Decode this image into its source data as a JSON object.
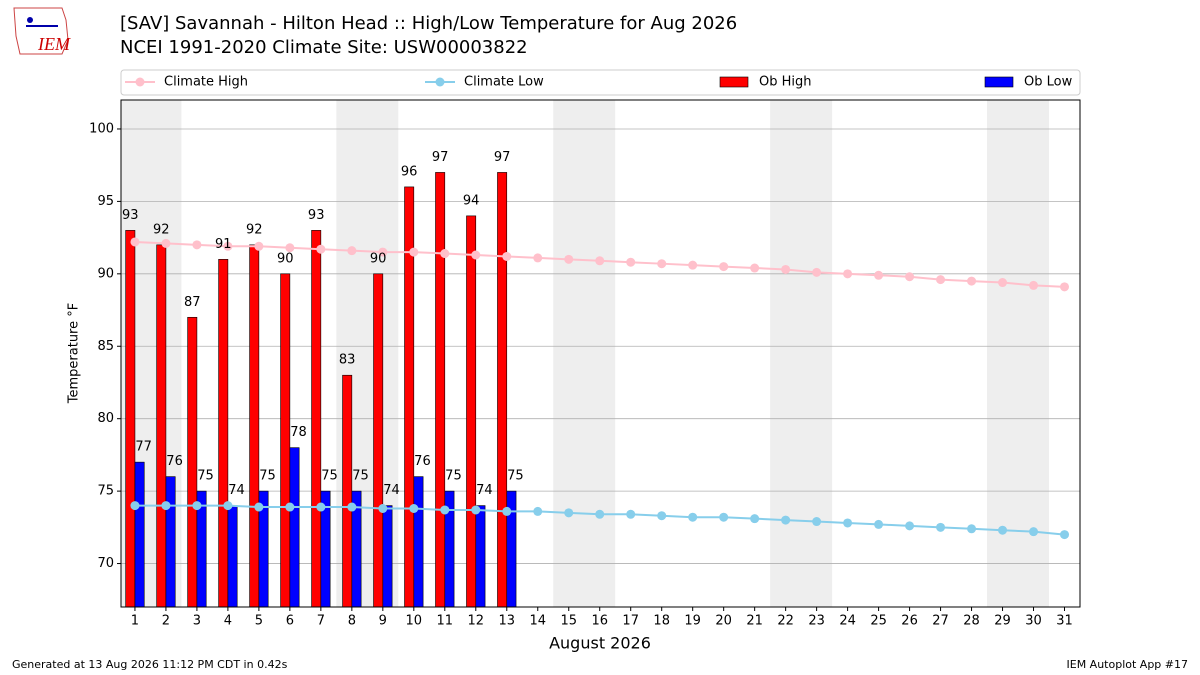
{
  "logo_text": "IEM",
  "footer_left": "Generated at 13 Aug 2026 11:12 PM CDT in 0.42s",
  "footer_right": "IEM Autoplot App #17",
  "chart_data": {
    "type": "bar_line",
    "title": "[SAV] Savannah - Hilton Head :: High/Low Temperature for Aug 2026",
    "subtitle": "NCEI 1991-2020 Climate Site: USW00003822",
    "x_label": "August 2026",
    "y_label": "Temperature °F",
    "x": [
      1,
      2,
      3,
      4,
      5,
      6,
      7,
      8,
      9,
      10,
      11,
      12,
      13,
      14,
      15,
      16,
      17,
      18,
      19,
      20,
      21,
      22,
      23,
      24,
      25,
      26,
      27,
      28,
      29,
      30,
      31
    ],
    "xlim": [
      0.55,
      31.5
    ],
    "xticks": [
      1,
      2,
      3,
      4,
      5,
      6,
      7,
      8,
      9,
      10,
      11,
      12,
      13,
      14,
      15,
      16,
      17,
      18,
      19,
      20,
      21,
      22,
      23,
      24,
      25,
      26,
      27,
      28,
      29,
      30,
      31
    ],
    "ylim": [
      67,
      102
    ],
    "yticks": [
      70,
      75,
      80,
      85,
      90,
      95,
      100
    ],
    "grid": true,
    "shaded_ranges": [
      [
        0.5,
        2.5
      ],
      [
        7.5,
        9.5
      ],
      [
        14.5,
        16.5
      ],
      [
        21.5,
        23.5
      ],
      [
        28.5,
        30.5
      ]
    ],
    "shade_color": "#eeeeee",
    "series": [
      {
        "name": "Climate High",
        "kind": "line",
        "color": "#ffc0cb",
        "values": [
          92.2,
          92.1,
          92.0,
          91.9,
          91.9,
          91.8,
          91.7,
          91.6,
          91.5,
          91.5,
          91.4,
          91.3,
          91.2,
          91.1,
          91.0,
          90.9,
          90.8,
          90.7,
          90.6,
          90.5,
          90.4,
          90.3,
          90.1,
          90.0,
          89.9,
          89.8,
          89.6,
          89.5,
          89.4,
          89.2,
          89.1
        ]
      },
      {
        "name": "Climate Low",
        "kind": "line",
        "color": "#87ceeb",
        "values": [
          74.0,
          74.0,
          74.0,
          74.0,
          73.9,
          73.9,
          73.9,
          73.9,
          73.8,
          73.8,
          73.7,
          73.7,
          73.6,
          73.6,
          73.5,
          73.4,
          73.4,
          73.3,
          73.2,
          73.2,
          73.1,
          73.0,
          72.9,
          72.8,
          72.7,
          72.6,
          72.5,
          72.4,
          72.3,
          72.2,
          72.0
        ]
      },
      {
        "name": "Ob High",
        "kind": "bar",
        "color": "#ff0000",
        "values": [
          93,
          92,
          87,
          91,
          92,
          90,
          93,
          83,
          90,
          96,
          97,
          94,
          97,
          null,
          null,
          null,
          null,
          null,
          null,
          null,
          null,
          null,
          null,
          null,
          null,
          null,
          null,
          null,
          null,
          null,
          null
        ]
      },
      {
        "name": "Ob Low",
        "kind": "bar",
        "color": "#0000ff",
        "values": [
          77,
          76,
          75,
          74,
          75,
          78,
          75,
          75,
          74,
          76,
          75,
          74,
          75,
          null,
          null,
          null,
          null,
          null,
          null,
          null,
          null,
          null,
          null,
          null,
          null,
          null,
          null,
          null,
          null,
          null,
          null
        ]
      }
    ]
  }
}
